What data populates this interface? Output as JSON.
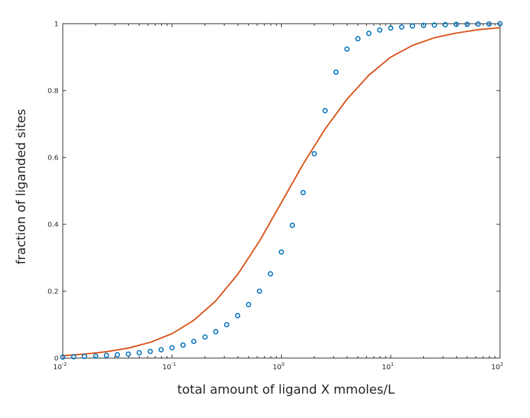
{
  "chart_data": {
    "type": "scatter",
    "xscale": "log",
    "xlim": [
      0.01,
      100
    ],
    "ylim": [
      0,
      1
    ],
    "grid": false,
    "legend": "none",
    "xlabel": "total amount of ligand X mmoles/L",
    "ylabel": "fraction of liganded sites",
    "x_ticks": [
      {
        "value": 0.01,
        "base": "10",
        "exp": "-2"
      },
      {
        "value": 0.1,
        "base": "10",
        "exp": "-1"
      },
      {
        "value": 1,
        "base": "10",
        "exp": "0"
      },
      {
        "value": 10,
        "base": "10",
        "exp": "1"
      },
      {
        "value": 100,
        "base": "10",
        "exp": "2"
      }
    ],
    "y_ticks": [
      {
        "value": 0,
        "label": "0"
      },
      {
        "value": 0.2,
        "label": "0.2"
      },
      {
        "value": 0.4,
        "label": "0.4"
      },
      {
        "value": 0.6,
        "label": "0.6"
      },
      {
        "value": 0.8,
        "label": "0.8"
      },
      {
        "value": 1,
        "label": "1"
      }
    ],
    "series": [
      {
        "style": "markers",
        "marker": "circle",
        "color": "#0072BD",
        "x": [
          0.01,
          0.0126,
          0.0158,
          0.02,
          0.0251,
          0.0316,
          0.0398,
          0.0501,
          0.0631,
          0.0794,
          0.1,
          0.126,
          0.158,
          0.2,
          0.251,
          0.316,
          0.398,
          0.501,
          0.631,
          0.794,
          1,
          1.26,
          1.58,
          2,
          2.51,
          3.16,
          3.98,
          5.01,
          6.31,
          7.94,
          10,
          12.6,
          15.8,
          20,
          25.1,
          31.6,
          39.8,
          50.1,
          63.1,
          79.4,
          100
        ],
        "y": [
          0.003,
          0.004,
          0.005,
          0.006,
          0.008,
          0.01,
          0.012,
          0.016,
          0.02,
          0.025,
          0.031,
          0.039,
          0.05,
          0.063,
          0.079,
          0.1,
          0.127,
          0.16,
          0.2,
          0.252,
          0.317,
          0.397,
          0.495,
          0.611,
          0.74,
          0.855,
          0.924,
          0.955,
          0.971,
          0.981,
          0.987,
          0.99,
          0.993,
          0.995,
          0.996,
          0.997,
          0.998,
          0.998,
          0.999,
          0.999,
          1.0
        ]
      },
      {
        "style": "line",
        "color": "#D95319",
        "x": [
          0.01,
          0.0158,
          0.0251,
          0.0398,
          0.0631,
          0.1,
          0.158,
          0.251,
          0.398,
          0.631,
          1,
          1.58,
          2.51,
          3.98,
          6.31,
          10,
          15.8,
          25.1,
          39.8,
          63.1,
          100
        ],
        "y": [
          0.007,
          0.012,
          0.019,
          0.03,
          0.047,
          0.073,
          0.113,
          0.171,
          0.25,
          0.35,
          0.465,
          0.58,
          0.685,
          0.774,
          0.846,
          0.9,
          0.935,
          0.958,
          0.972,
          0.982,
          0.988
        ]
      }
    ]
  }
}
